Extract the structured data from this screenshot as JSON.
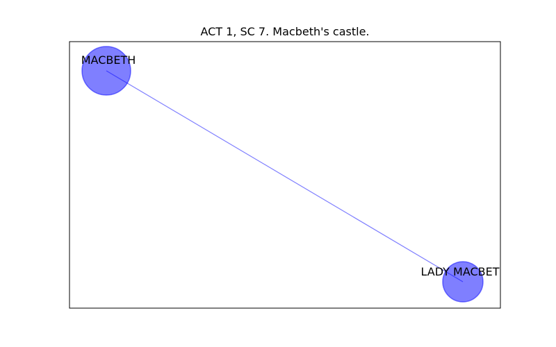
{
  "title": "ACT 1, SC 7. Macbeth's castle.",
  "colors": {
    "node_fill": "#0000ff",
    "node_edge": "#0000ff",
    "edge": "#0000ff",
    "frame": "#000000"
  },
  "graph": {
    "nodes": [
      {
        "id": "MACBETH",
        "label": "MACBETH"
      },
      {
        "id": "LADY MACBETH",
        "label": "LADY MACBET"
      }
    ],
    "edges": [
      {
        "source": "MACBETH",
        "target": "LADY MACBETH"
      }
    ]
  }
}
